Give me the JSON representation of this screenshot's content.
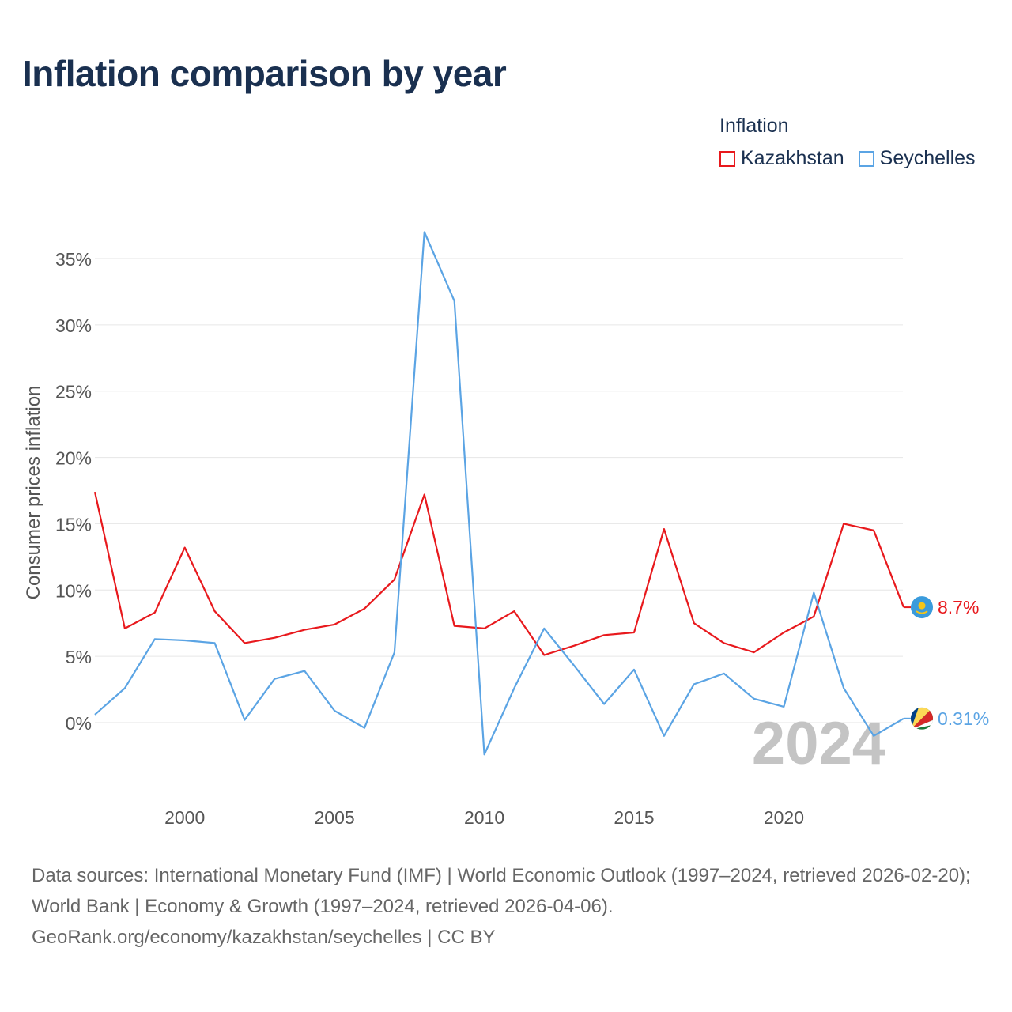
{
  "title": "Inflation comparison by year",
  "legend": {
    "title": "Inflation",
    "items": [
      {
        "label": "Kazakhstan",
        "color": "#e8191d"
      },
      {
        "label": "Seychelles",
        "color": "#5ba4e4"
      }
    ]
  },
  "chart_data": {
    "type": "line",
    "ylabel": "Consumer prices inflation",
    "xlabel": "",
    "ylim": [
      -5.5,
      37
    ],
    "xlim": [
      1997,
      2024
    ],
    "yticks": [
      0,
      5,
      10,
      15,
      20,
      25,
      30,
      35
    ],
    "ytick_labels": [
      "0%",
      "5%",
      "10%",
      "15%",
      "20%",
      "25%",
      "30%",
      "35%"
    ],
    "xticks": [
      2000,
      2005,
      2010,
      2015,
      2020
    ],
    "xtick_labels": [
      "2000",
      "2005",
      "2010",
      "2015",
      "2020"
    ],
    "x": [
      1997,
      1998,
      1999,
      2000,
      2001,
      2002,
      2003,
      2004,
      2005,
      2006,
      2007,
      2008,
      2009,
      2010,
      2011,
      2012,
      2013,
      2014,
      2015,
      2016,
      2017,
      2018,
      2019,
      2020,
      2021,
      2022,
      2023,
      2024
    ],
    "series": [
      {
        "name": "Kazakhstan",
        "color": "#e8191d",
        "end_label": "8.7%",
        "values": [
          17.4,
          7.1,
          8.3,
          13.2,
          8.4,
          6.0,
          6.4,
          7.0,
          7.4,
          8.6,
          10.8,
          17.2,
          7.3,
          7.1,
          8.4,
          5.1,
          5.8,
          6.6,
          6.8,
          14.6,
          7.5,
          6.0,
          5.3,
          6.8,
          8.0,
          15.0,
          14.5,
          8.7
        ]
      },
      {
        "name": "Seychelles",
        "color": "#5ba4e4",
        "end_label": "0.31%",
        "values": [
          0.6,
          2.6,
          6.3,
          6.2,
          6.0,
          0.2,
          3.3,
          3.9,
          0.9,
          -0.4,
          5.3,
          37.0,
          31.8,
          -2.4,
          2.6,
          7.1,
          4.3,
          1.4,
          4.0,
          -1.0,
          2.9,
          3.7,
          1.8,
          1.2,
          9.8,
          2.6,
          -1.0,
          0.31
        ]
      }
    ],
    "year_watermark": "2024"
  },
  "footer": {
    "line1": "Data sources: International Monetary Fund (IMF) | World Economic Outlook (1997–2024, retrieved 2026-02-20); World Bank | Economy & Growth (1997–2024, retrieved 2026-04-06).",
    "line2": "GeoRank.org/economy/kazakhstan/seychelles | CC BY"
  },
  "icons": {
    "kazakhstan": "kazakhstan-flag-icon",
    "seychelles": "seychelles-flag-icon"
  }
}
